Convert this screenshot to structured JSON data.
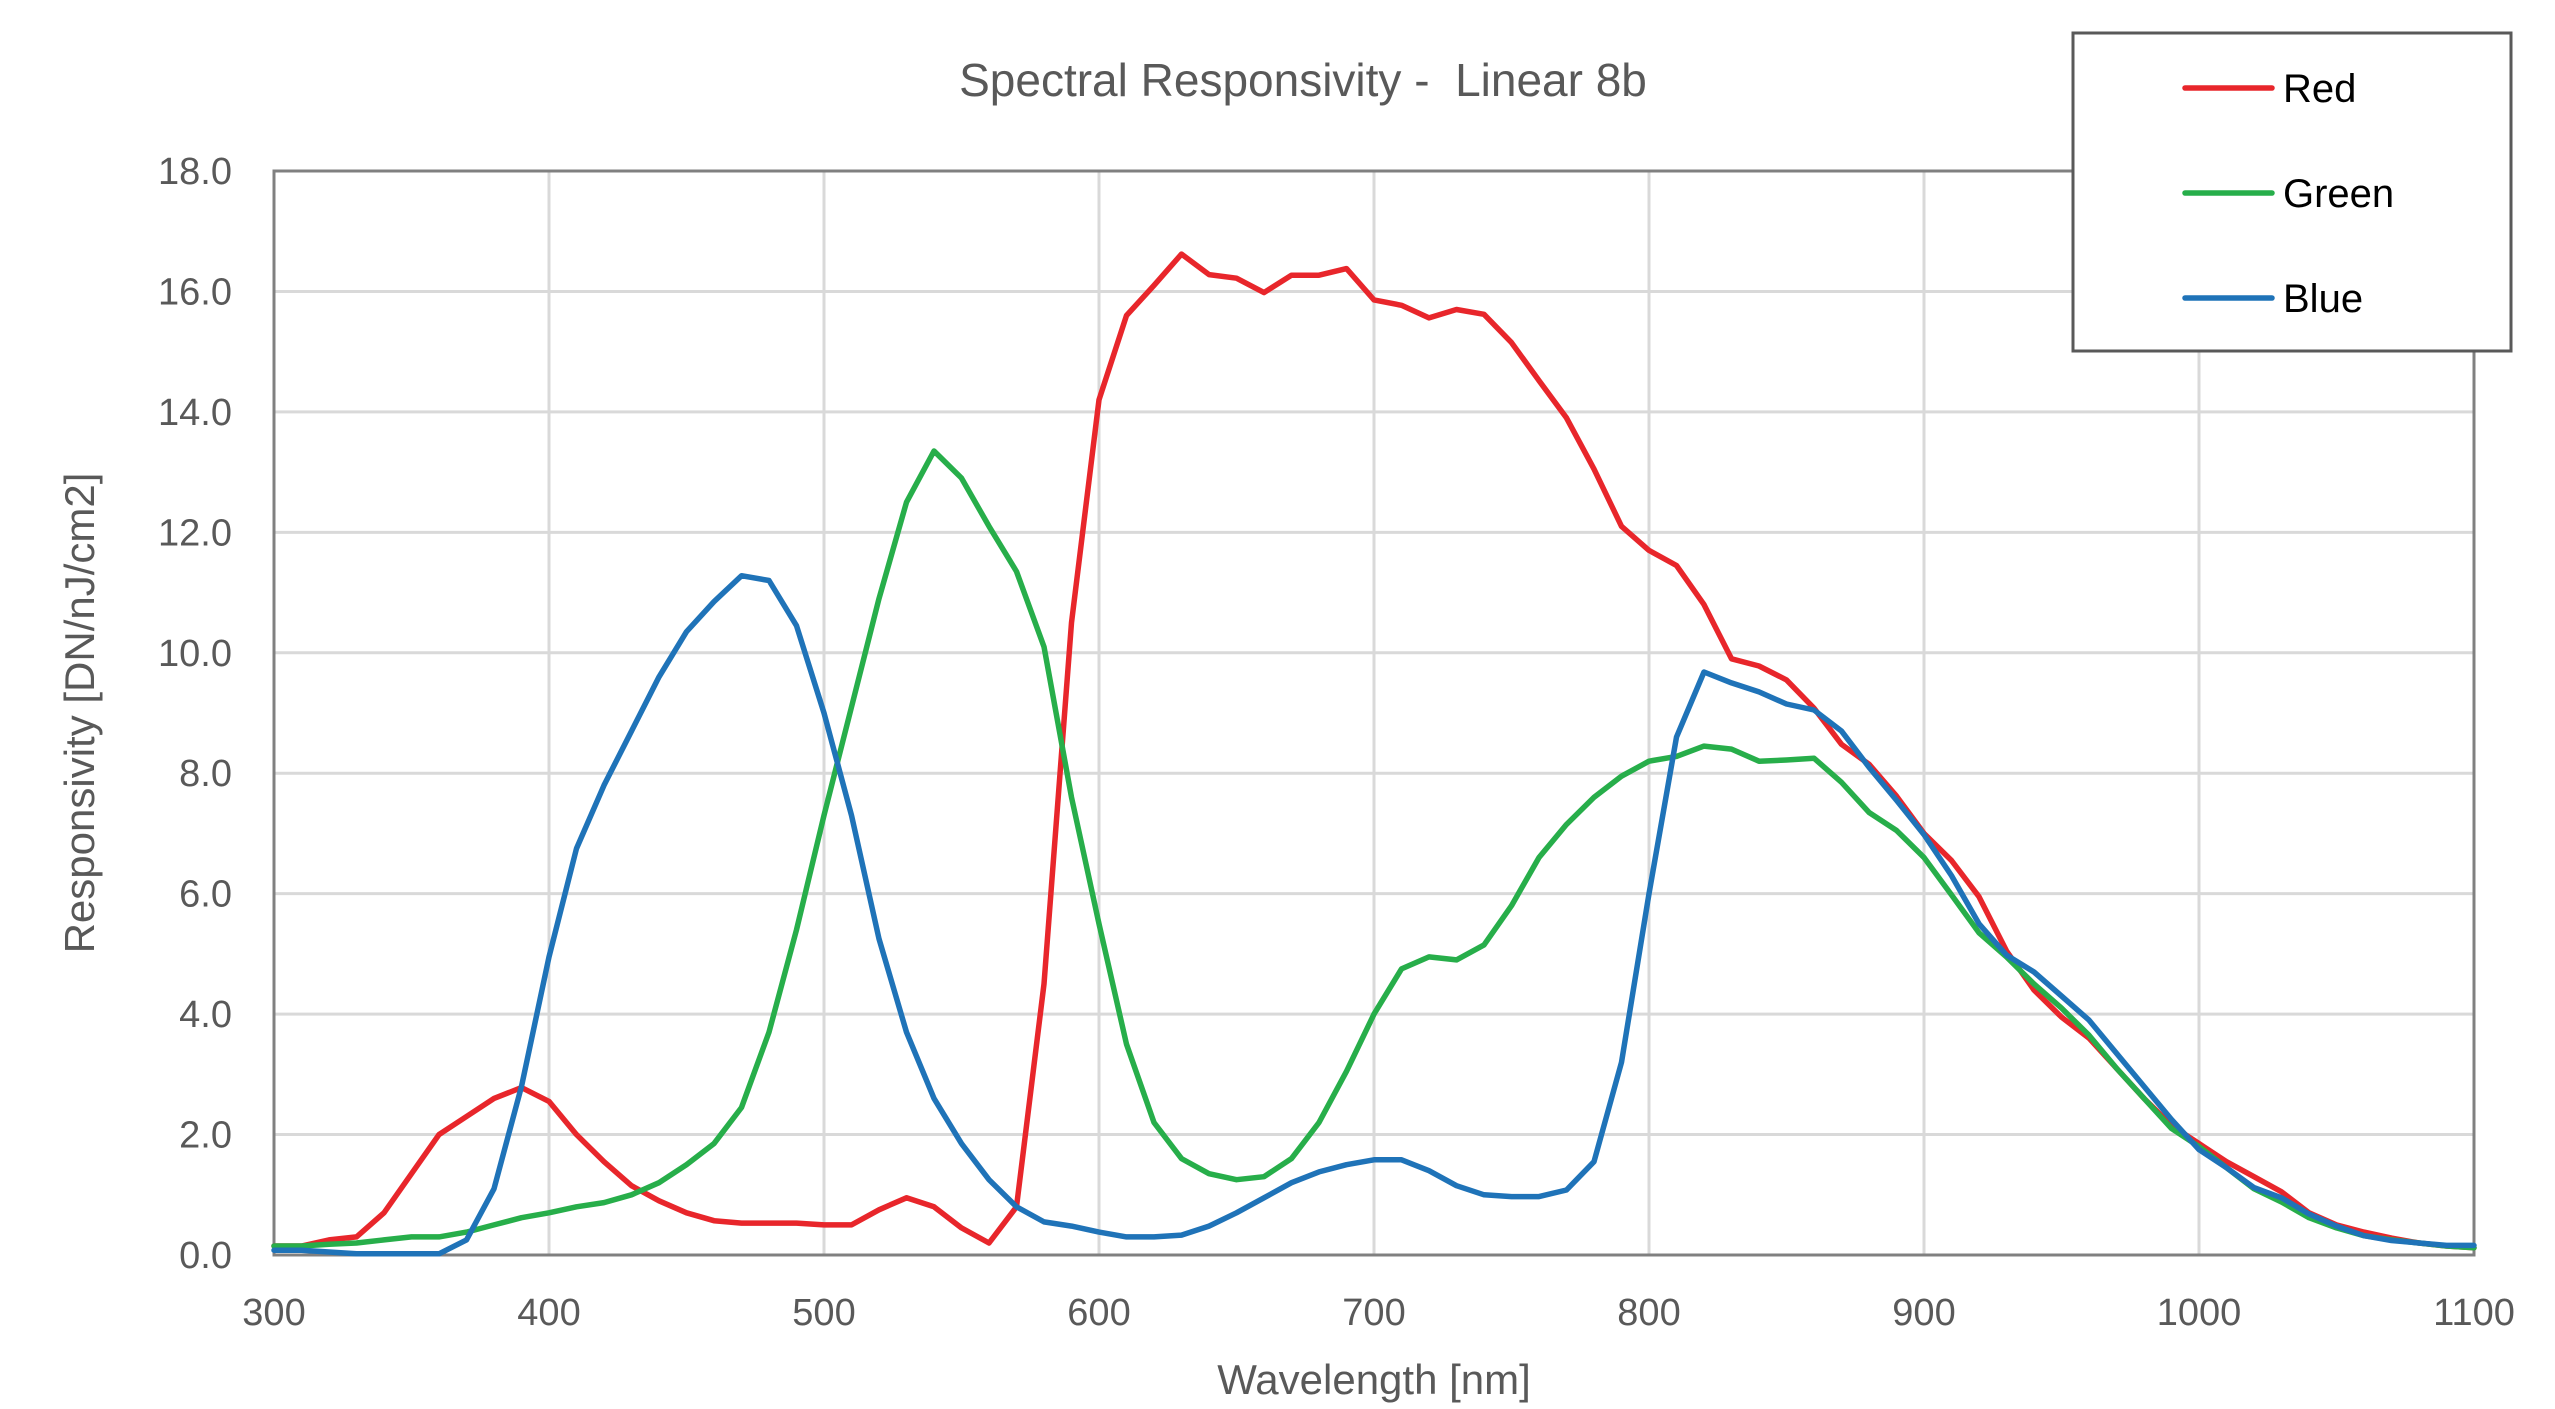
{
  "chart_data": {
    "type": "line",
    "title": "Spectral Responsivity -  Linear 8b",
    "xlabel": "Wavelength [nm]",
    "ylabel": "Responsivity [DN/nJ/cm2]",
    "xlim": [
      300,
      1100
    ],
    "ylim": [
      0,
      18
    ],
    "grid": true,
    "legend_position": "top-right",
    "x_ticks": [
      "300",
      "400",
      "500",
      "600",
      "700",
      "800",
      "900",
      "1000",
      "1100"
    ],
    "y_ticks": [
      "0.0",
      "2.0",
      "4.0",
      "6.0",
      "8.0",
      "10.0",
      "12.0",
      "14.0",
      "16.0",
      "18.0"
    ],
    "x": [
      300,
      310,
      320,
      330,
      340,
      350,
      360,
      370,
      380,
      390,
      400,
      410,
      420,
      430,
      440,
      450,
      460,
      470,
      480,
      490,
      500,
      510,
      520,
      530,
      540,
      550,
      560,
      570,
      580,
      590,
      600,
      610,
      620,
      630,
      640,
      650,
      660,
      670,
      680,
      690,
      700,
      710,
      720,
      730,
      740,
      750,
      760,
      770,
      780,
      790,
      800,
      810,
      820,
      830,
      840,
      850,
      860,
      870,
      880,
      890,
      900,
      910,
      920,
      930,
      940,
      950,
      960,
      970,
      980,
      990,
      1000,
      1010,
      1020,
      1030,
      1040,
      1050,
      1060,
      1070,
      1080,
      1090,
      1100
    ],
    "series": [
      {
        "name": "Red",
        "color": "#e8262b",
        "values": [
          0.15,
          0.15,
          0.25,
          0.3,
          0.7,
          1.35,
          2.0,
          2.3,
          2.6,
          2.78,
          2.55,
          2.0,
          1.55,
          1.15,
          0.9,
          0.7,
          0.57,
          0.53,
          0.53,
          0.53,
          0.5,
          0.5,
          0.75,
          0.95,
          0.8,
          0.45,
          0.2,
          0.8,
          4.5,
          10.5,
          14.2,
          15.6,
          16.1,
          16.62,
          16.28,
          16.22,
          15.98,
          16.27,
          16.27,
          16.38,
          15.86,
          15.77,
          15.56,
          15.7,
          15.62,
          15.15,
          14.52,
          13.9,
          13.05,
          12.1,
          11.7,
          11.45,
          10.8,
          9.9,
          9.78,
          9.55,
          9.08,
          8.48,
          8.15,
          7.62,
          7.0,
          6.55,
          5.95,
          5.05,
          4.4,
          3.95,
          3.6,
          3.1,
          2.6,
          2.15,
          1.85,
          1.55,
          1.3,
          1.05,
          0.7,
          0.5,
          0.38,
          0.28,
          0.2,
          0.15,
          0.12
        ]
      },
      {
        "name": "Green",
        "color": "#27ae4a",
        "values": [
          0.15,
          0.15,
          0.18,
          0.2,
          0.25,
          0.3,
          0.3,
          0.38,
          0.5,
          0.62,
          0.7,
          0.8,
          0.87,
          1.0,
          1.2,
          1.5,
          1.85,
          2.45,
          3.7,
          5.4,
          7.3,
          9.1,
          10.9,
          12.5,
          13.35,
          12.9,
          12.1,
          11.35,
          10.1,
          7.6,
          5.5,
          3.5,
          2.2,
          1.6,
          1.35,
          1.25,
          1.3,
          1.6,
          2.2,
          3.05,
          4.0,
          4.75,
          4.95,
          4.9,
          5.15,
          5.8,
          6.6,
          7.15,
          7.6,
          7.95,
          8.2,
          8.28,
          8.45,
          8.4,
          8.2,
          8.22,
          8.25,
          7.85,
          7.35,
          7.05,
          6.6,
          5.98,
          5.35,
          4.95,
          4.5,
          4.1,
          3.65,
          3.1,
          2.6,
          2.1,
          1.8,
          1.45,
          1.1,
          0.88,
          0.62,
          0.45,
          0.32,
          0.25,
          0.2,
          0.15,
          0.12
        ]
      },
      {
        "name": "Blue",
        "color": "#1f73b8",
        "values": [
          0.08,
          0.08,
          0.05,
          0.02,
          0.02,
          0.02,
          0.02,
          0.25,
          1.1,
          2.8,
          4.95,
          6.75,
          7.8,
          8.7,
          9.6,
          10.35,
          10.85,
          11.28,
          11.2,
          10.45,
          9.0,
          7.3,
          5.25,
          3.7,
          2.6,
          1.85,
          1.25,
          0.8,
          0.55,
          0.48,
          0.38,
          0.3,
          0.3,
          0.33,
          0.48,
          0.7,
          0.95,
          1.2,
          1.38,
          1.5,
          1.58,
          1.58,
          1.4,
          1.15,
          1.0,
          0.97,
          0.97,
          1.08,
          1.55,
          3.2,
          6.0,
          8.6,
          9.68,
          9.5,
          9.35,
          9.15,
          9.05,
          8.7,
          8.1,
          7.55,
          6.98,
          6.3,
          5.5,
          4.98,
          4.7,
          4.3,
          3.9,
          3.35,
          2.8,
          2.25,
          1.75,
          1.45,
          1.12,
          0.95,
          0.68,
          0.48,
          0.32,
          0.24,
          0.2,
          0.16,
          0.16
        ]
      }
    ]
  }
}
